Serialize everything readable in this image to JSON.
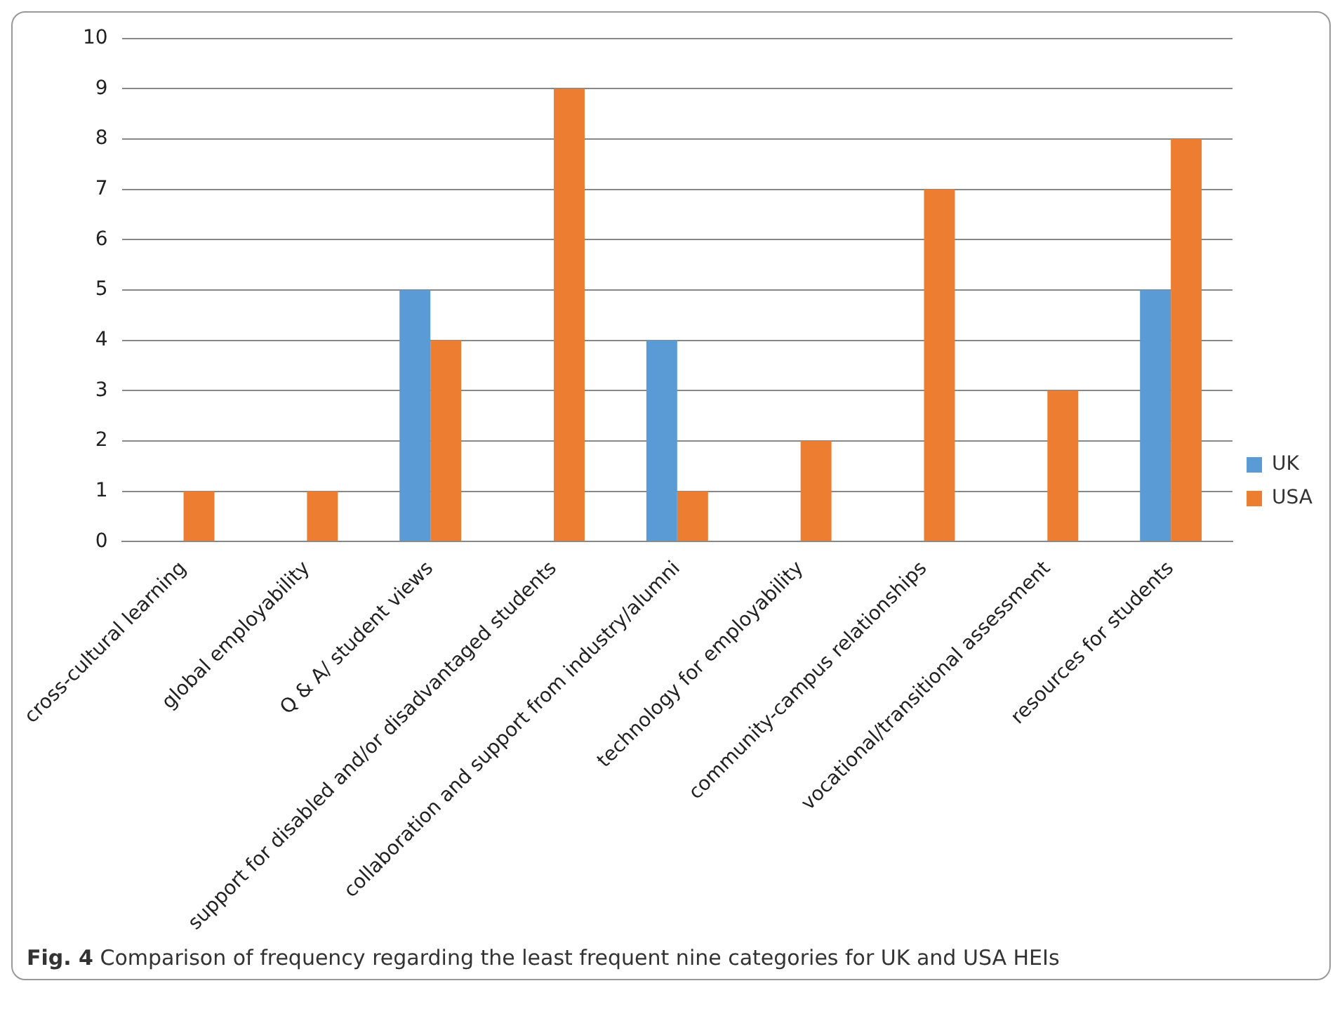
{
  "chart_data": {
    "type": "bar",
    "categories": [
      "cross-cultural learning",
      "global employability",
      "Q & A/ student views",
      "support for disabled and/or disadvantaged students",
      "collaboration and support from industry/alumni",
      "technology for employability",
      "community-campus relationships",
      "vocational/transitional assessment",
      "resources for students"
    ],
    "series": [
      {
        "name": "UK",
        "color": "#5b9bd5",
        "values": [
          0,
          0,
          5,
          0,
          4,
          0,
          0,
          0,
          5
        ]
      },
      {
        "name": "USA",
        "color": "#ed7d31",
        "values": [
          1,
          1,
          4,
          9,
          1,
          2,
          7,
          3,
          8
        ]
      }
    ],
    "ylim": [
      0,
      10
    ],
    "yticks": [
      0,
      1,
      2,
      3,
      4,
      5,
      6,
      7,
      8,
      9,
      10
    ],
    "grid": "y",
    "legend": "right",
    "annotations": [
      "Fig. 4 Comparison of frequency regarding the least frequent nine categories for UK and USA HEIs"
    ]
  }
}
